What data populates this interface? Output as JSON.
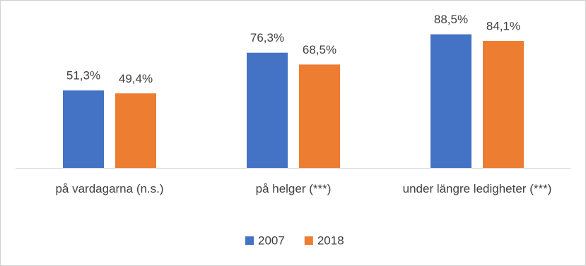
{
  "chart_data": {
    "type": "bar",
    "categories": [
      "på vardagarna (n.s.)",
      "på helger (***)",
      "under längre ledigheter (***)"
    ],
    "series": [
      {
        "name": "2007",
        "color": "#4472c4",
        "values": [
          51.3,
          76.3,
          88.5
        ],
        "value_labels": [
          "51,3%",
          "76,3%",
          "88,5%"
        ]
      },
      {
        "name": "2018",
        "color": "#ed7d31",
        "values": [
          49.4,
          68.5,
          84.1
        ],
        "value_labels": [
          "49,4%",
          "68,5%",
          "84,1%"
        ]
      }
    ],
    "legend": "bottom"
  }
}
